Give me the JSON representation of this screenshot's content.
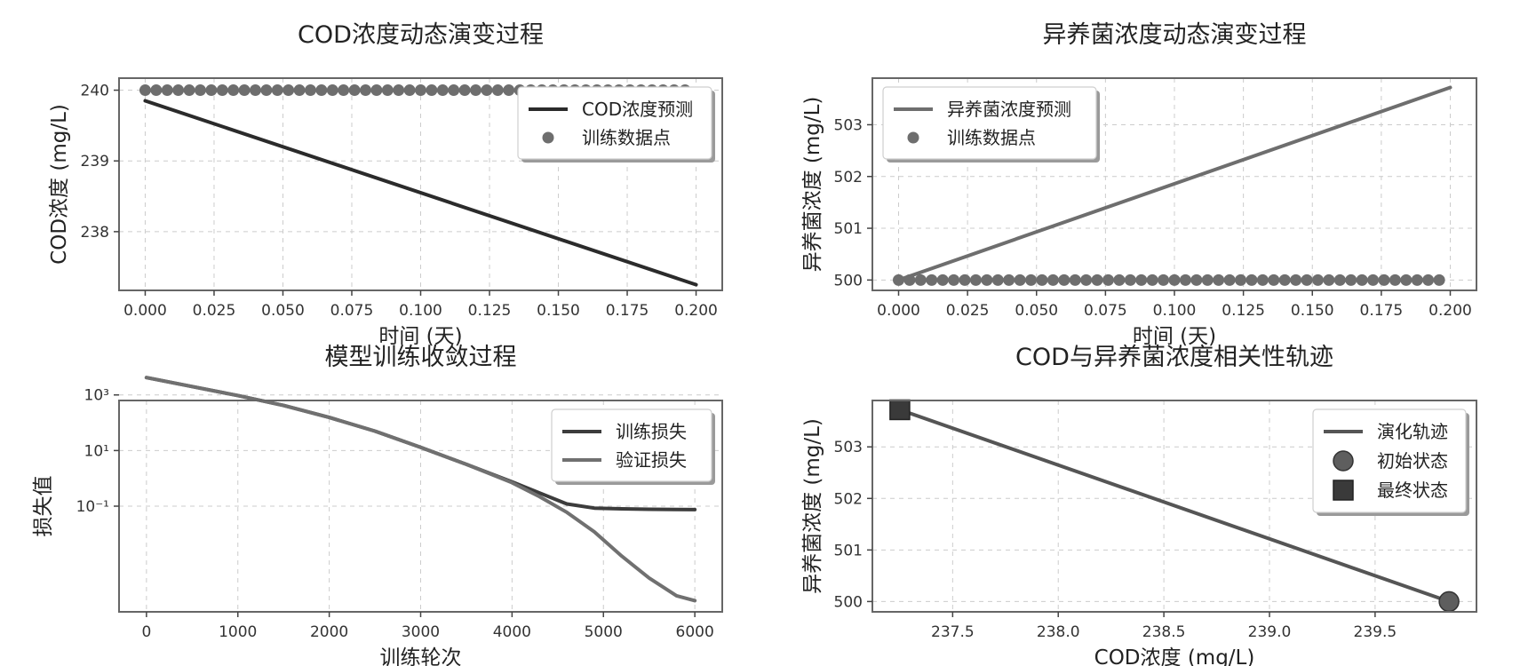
{
  "chart_data": [
    {
      "id": "cod",
      "type": "line",
      "title": "COD浓度动态演变过程",
      "xlabel": "时间 (天)",
      "ylabel": "COD浓度 (mg/L)",
      "xlim": [
        -0.0095,
        0.2095
      ],
      "ylim": [
        237.17,
        240.17
      ],
      "yscale": "linear",
      "grid": true,
      "legend_position": "top-right",
      "xticks": [
        0,
        0.025,
        0.05,
        0.075,
        0.1,
        0.125,
        0.15,
        0.175,
        0.2
      ],
      "xtick_labels": [
        "0.000",
        "0.025",
        "0.050",
        "0.075",
        "0.100",
        "0.125",
        "0.150",
        "0.175",
        "0.200"
      ],
      "yticks": [
        238,
        239,
        240
      ],
      "ytick_labels": [
        "238",
        "239",
        "240"
      ],
      "series": [
        {
          "name": "COD浓度预测",
          "kind": "line",
          "color": "#2b2b2b",
          "x": [
            0,
            0.2
          ],
          "y": [
            239.85,
            237.25
          ]
        },
        {
          "name": "训练数据点",
          "kind": "scatter",
          "color": "#6e6e6e",
          "x_start": 0,
          "x_step": 0.004,
          "count": 50,
          "y": 240.0
        }
      ]
    },
    {
      "id": "bacteria",
      "type": "line",
      "title": "异养菌浓度动态演变过程",
      "xlabel": "时间 (天)",
      "ylabel": "异养菌浓度 (mg/L)",
      "xlim": [
        -0.0095,
        0.2095
      ],
      "ylim": [
        499.8,
        503.9
      ],
      "yscale": "linear",
      "grid": true,
      "legend_position": "top-left",
      "xticks": [
        0,
        0.025,
        0.05,
        0.075,
        0.1,
        0.125,
        0.15,
        0.175,
        0.2
      ],
      "xtick_labels": [
        "0.000",
        "0.025",
        "0.050",
        "0.075",
        "0.100",
        "0.125",
        "0.150",
        "0.175",
        "0.200"
      ],
      "yticks": [
        500,
        501,
        502,
        503
      ],
      "ytick_labels": [
        "500",
        "501",
        "502",
        "503"
      ],
      "series": [
        {
          "name": "异养菌浓度预测",
          "kind": "line",
          "color": "#6e6e6e",
          "x": [
            0,
            0.2
          ],
          "y": [
            500.0,
            503.72
          ]
        },
        {
          "name": "训练数据点",
          "kind": "scatter",
          "color": "#6e6e6e",
          "x_start": 0,
          "x_step": 0.004,
          "count": 50,
          "y": 500.0
        }
      ]
    },
    {
      "id": "loss",
      "type": "line",
      "title": "模型训练收敛过程",
      "xlabel": "训练轮次",
      "ylabel": "损失值",
      "xlim": [
        -300,
        6300
      ],
      "ylim": [
        -4.8,
        2.8
      ],
      "yscale": "log",
      "grid": true,
      "legend_position": "top-right",
      "xticks": [
        0,
        1000,
        2000,
        3000,
        4000,
        5000,
        6000
      ],
      "xtick_labels": [
        "0",
        "1000",
        "2000",
        "3000",
        "4000",
        "5000",
        "6000"
      ],
      "yticks": [
        -1,
        1,
        3
      ],
      "ytick_labels": [
        "10⁻¹",
        "10¹",
        "10³"
      ],
      "series": [
        {
          "name": "训练损失",
          "kind": "line",
          "color": "#3c3c3c",
          "x": [
            0,
            500,
            1000,
            1500,
            2000,
            2500,
            3000,
            3500,
            4000,
            4300,
            4600,
            4900,
            5200,
            5500,
            5800,
            6000
          ],
          "y": [
            4200,
            2000,
            950,
            420,
            155,
            50,
            13,
            3.2,
            0.75,
            0.3,
            0.12,
            0.085,
            0.08,
            0.077,
            0.076,
            0.075
          ]
        },
        {
          "name": "验证损失",
          "kind": "line",
          "color": "#707070",
          "x": [
            0,
            500,
            1000,
            1500,
            2000,
            2500,
            3000,
            3500,
            4000,
            4300,
            4600,
            4900,
            5200,
            5500,
            5800,
            6000
          ],
          "y": [
            4200,
            2000,
            950,
            420,
            155,
            50,
            13,
            3.2,
            0.7,
            0.22,
            0.06,
            0.012,
            0.0016,
            0.00026,
            6e-05,
            4e-05
          ]
        }
      ]
    },
    {
      "id": "trajectory",
      "type": "line",
      "title": "COD与异养菌浓度相关性轨迹",
      "xlabel": "COD浓度 (mg/L)",
      "ylabel": "异养菌浓度 (mg/L)",
      "xlim": [
        237.12,
        239.98
      ],
      "ylim": [
        499.8,
        503.9
      ],
      "yscale": "linear",
      "grid": true,
      "legend_position": "top-right",
      "xticks": [
        237.5,
        238,
        238.5,
        239,
        239.5
      ],
      "xtick_labels": [
        "237.5",
        "238.0",
        "238.5",
        "239.0",
        "239.5"
      ],
      "yticks": [
        500,
        501,
        502,
        503
      ],
      "ytick_labels": [
        "500",
        "501",
        "502",
        "503"
      ],
      "series": [
        {
          "name": "演化轨迹",
          "kind": "line",
          "color": "#555555",
          "x": [
            239.85,
            237.25
          ],
          "y": [
            500.0,
            503.72
          ]
        },
        {
          "name": "初始状态",
          "kind": "marker-circle",
          "color": "#5e5e5e",
          "x": [
            239.85
          ],
          "y": [
            500.0
          ]
        },
        {
          "name": "最终状态",
          "kind": "marker-square",
          "color": "#3a3a3a",
          "x": [
            237.25
          ],
          "y": [
            503.72
          ]
        }
      ]
    }
  ]
}
